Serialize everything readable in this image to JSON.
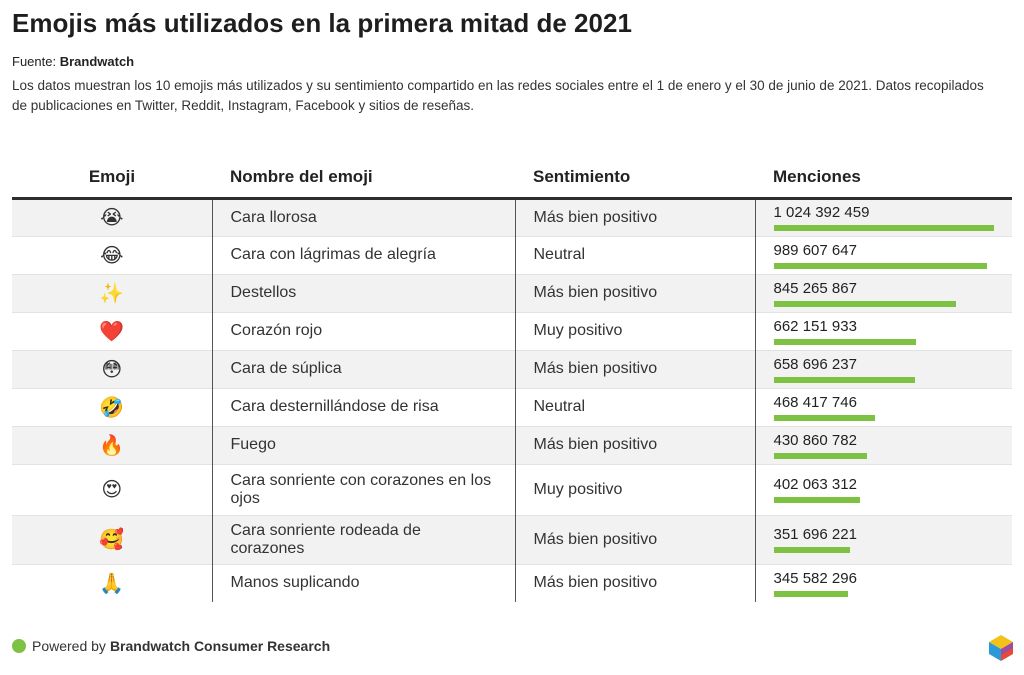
{
  "title": "Emojis más utilizados en la primera mitad de 2021",
  "source_label": "Fuente:",
  "source_name": "Brandwatch",
  "description": "Los datos muestran los 10 emojis más utilizados y su sentimiento compartido en las redes sociales entre el 1 de enero y el 30 de junio de 2021. Datos recopilados de publicaciones en Twitter, Reddit, Instagram, Facebook y sitios de reseñas.",
  "headers": {
    "emoji": "Emoji",
    "name": "Nombre del emoji",
    "sentiment": "Sentimiento",
    "mentions": "Menciones"
  },
  "colors": {
    "bar": "#7dc242",
    "header_rule": "#2e2e2e",
    "stripe": "#f2f2f2"
  },
  "chart_data": {
    "type": "table",
    "columns": [
      "Emoji",
      "Nombre del emoji",
      "Sentimiento",
      "Menciones"
    ],
    "max_value": 1024392459,
    "rows": [
      {
        "emoji": "😭",
        "name": "Cara llorosa",
        "sentiment": "Más bien positivo",
        "mentions": 1024392459,
        "mentions_label": "1 024 392 459"
      },
      {
        "emoji": "😂",
        "name": "Cara con lágrimas de alegría",
        "sentiment": "Neutral",
        "mentions": 989607647,
        "mentions_label": "989 607 647"
      },
      {
        "emoji": "✨",
        "name": "Destellos",
        "sentiment": "Más bien positivo",
        "mentions": 845265867,
        "mentions_label": "845 265 867"
      },
      {
        "emoji": "❤️",
        "name": "Corazón rojo",
        "sentiment": "Muy positivo",
        "mentions": 662151933,
        "mentions_label": "662 151 933"
      },
      {
        "emoji": "😳",
        "name": "Cara de súplica",
        "sentiment": "Más bien positivo",
        "mentions": 658696237,
        "mentions_label": "658 696 237"
      },
      {
        "emoji": "🤣",
        "name": "Cara desternillándose de risa",
        "sentiment": "Neutral",
        "mentions": 468417746,
        "mentions_label": "468 417 746"
      },
      {
        "emoji": "🔥",
        "name": "Fuego",
        "sentiment": "Más bien positivo",
        "mentions": 430860782,
        "mentions_label": "430 860 782"
      },
      {
        "emoji": "😍",
        "name": "Cara sonriente con corazones en los ojos",
        "sentiment": "Muy positivo",
        "mentions": 402063312,
        "mentions_label": "402 063 312"
      },
      {
        "emoji": "🥰",
        "name": "Cara sonriente rodeada de corazones",
        "sentiment": "Más bien positivo",
        "mentions": 351696221,
        "mentions_label": "351 696 221"
      },
      {
        "emoji": "🙏",
        "name": "Manos suplicando",
        "sentiment": "Más bien positivo",
        "mentions": 345582296,
        "mentions_label": "345 582 296"
      }
    ]
  },
  "footer": {
    "powered_by": "Powered by",
    "brand": "Brandwatch Consumer Research"
  }
}
